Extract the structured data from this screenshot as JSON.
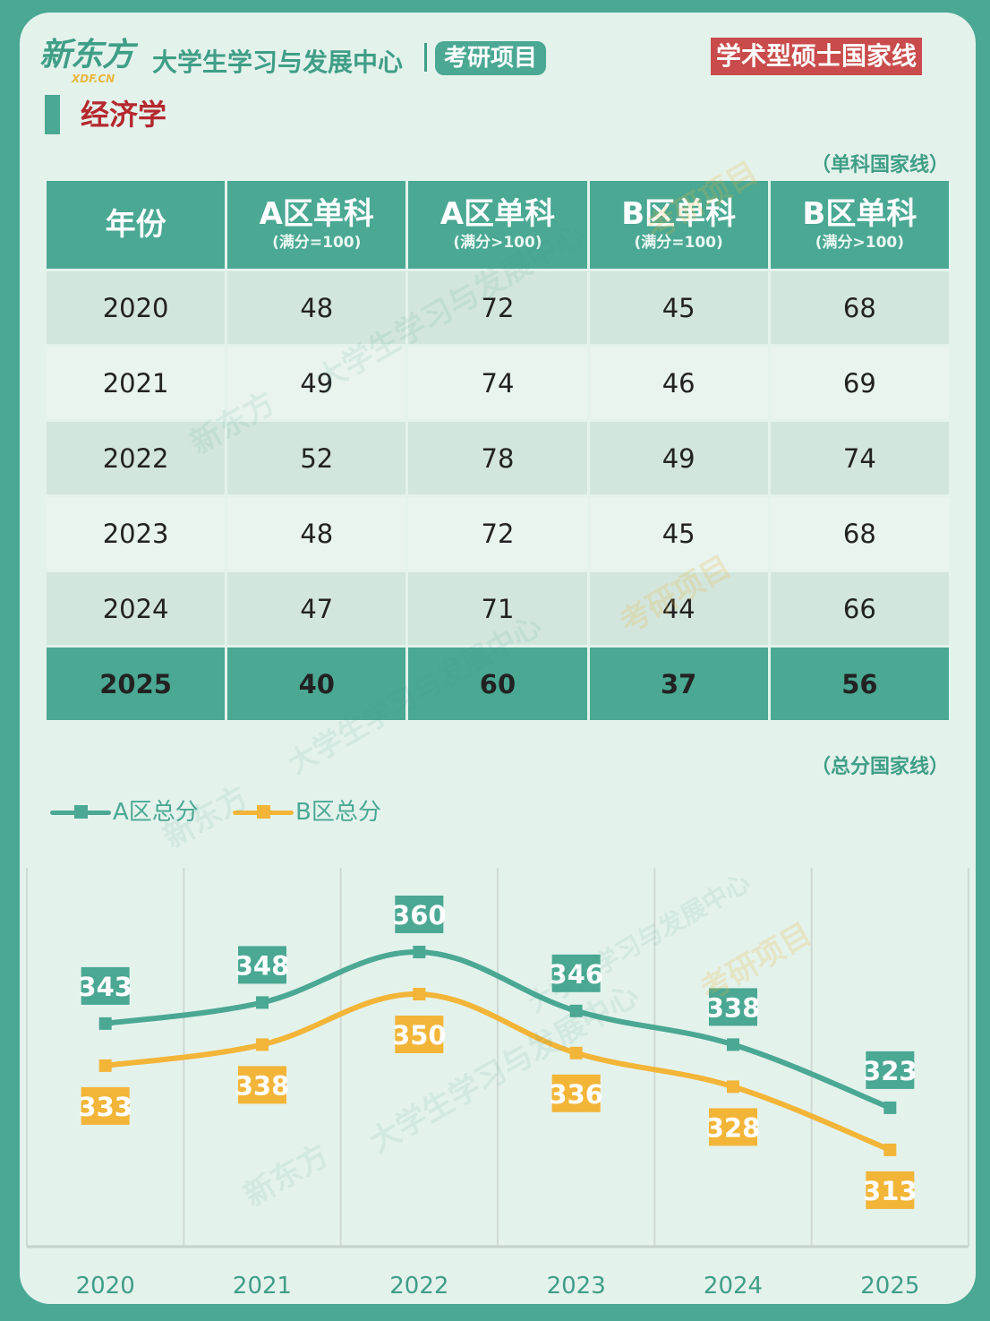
{
  "header": {
    "logo_text": "新东方",
    "logo_sub": "XDF.CN",
    "center_title": "大学生学习与发展中心",
    "kaoyan_tag": "考研项目",
    "right_tag": "学术型硕士国家线"
  },
  "section": {
    "title": "经济学"
  },
  "single_note": "（单科国家线）",
  "total_note": "（总分国家线）",
  "table": {
    "headers": [
      {
        "main": "年份",
        "sub": ""
      },
      {
        "main": "A区单科",
        "sub": "(满分=100)"
      },
      {
        "main": "A区单科",
        "sub": "(满分>100)"
      },
      {
        "main": "B区单科",
        "sub": "(满分=100)"
      },
      {
        "main": "B区单科",
        "sub": "(满分>100)"
      }
    ],
    "rows": [
      [
        "2020",
        "48",
        "72",
        "45",
        "68"
      ],
      [
        "2021",
        "49",
        "74",
        "46",
        "69"
      ],
      [
        "2022",
        "52",
        "78",
        "49",
        "74"
      ],
      [
        "2023",
        "48",
        "72",
        "45",
        "68"
      ],
      [
        "2024",
        "47",
        "71",
        "44",
        "66"
      ],
      [
        "2025",
        "40",
        "60",
        "37",
        "56"
      ]
    ],
    "highlight_row": "2025"
  },
  "chart_data": {
    "type": "line",
    "x": [
      "2020",
      "2021",
      "2022",
      "2023",
      "2024",
      "2025"
    ],
    "series": [
      {
        "name": "A区总分",
        "values": [
          343,
          348,
          360,
          346,
          338,
          323
        ],
        "color": "#4aa893"
      },
      {
        "name": "B区总分",
        "values": [
          333,
          338,
          350,
          336,
          328,
          313
        ],
        "color": "#f2b538"
      }
    ],
    "ylim": [
      290,
      380
    ],
    "grid": "vertical",
    "legend": "top-left",
    "smooth": true,
    "data_labels": true
  },
  "watermarks": [
    "新东方",
    "大学生学习与发展中心",
    "考研项目"
  ],
  "colors": {
    "primary": "#4aa893",
    "accent": "#f2b538",
    "title_red": "#b4282e",
    "tag_red": "#c94b4b",
    "card_bg": "#e4f2ec"
  }
}
